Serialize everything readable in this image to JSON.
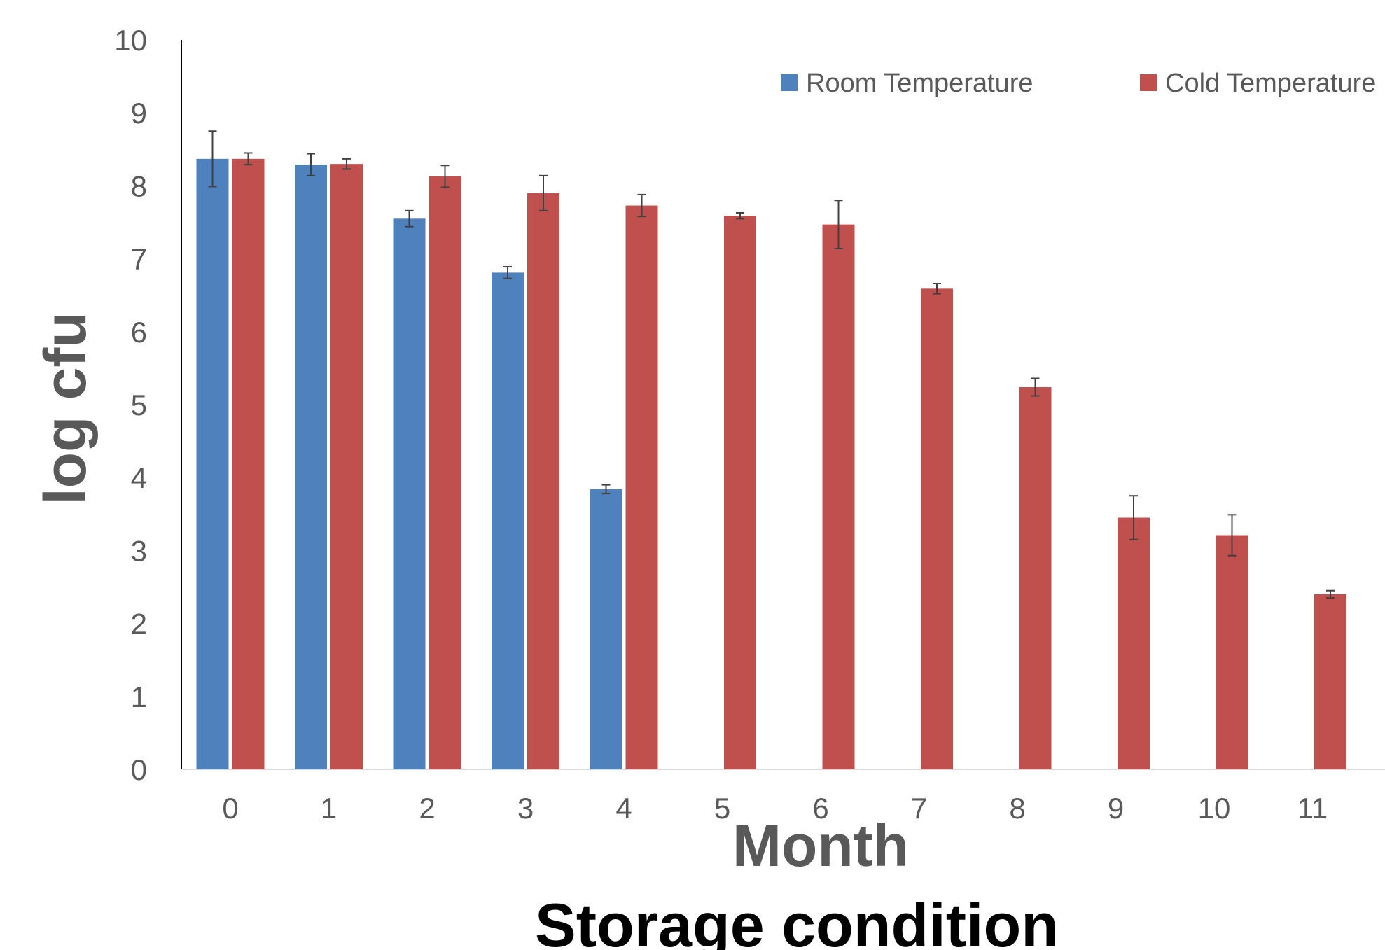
{
  "chart_data": {
    "type": "bar",
    "categories": [
      "0",
      "1",
      "2",
      "3",
      "4",
      "5",
      "6",
      "7",
      "8",
      "9",
      "10",
      "11"
    ],
    "series": [
      {
        "name": "Room Temperature",
        "color": "#4F81BD",
        "values": [
          8.37,
          8.29,
          7.55,
          6.81,
          3.84,
          null,
          null,
          null,
          null,
          null,
          null,
          null
        ],
        "errors": [
          0.38,
          0.15,
          0.11,
          0.08,
          0.06,
          null,
          null,
          null,
          null,
          null,
          null,
          null
        ]
      },
      {
        "name": "Cold Temperature",
        "color": "#C0504D",
        "values": [
          8.37,
          8.3,
          8.13,
          7.9,
          7.73,
          7.59,
          7.47,
          6.59,
          5.24,
          3.45,
          3.21,
          2.4
        ],
        "errors": [
          0.08,
          0.07,
          0.15,
          0.24,
          0.15,
          0.04,
          0.33,
          0.07,
          0.12,
          0.3,
          0.28,
          0.05
        ]
      }
    ],
    "xlabel": "Month",
    "ylabel": "log cfu",
    "caption": "Storage condition",
    "ylim": [
      0,
      10
    ],
    "yticks": [
      "0",
      "1",
      "2",
      "3",
      "4",
      "5",
      "6",
      "7",
      "8",
      "9",
      "10"
    ],
    "grid": false,
    "legend_position": "top-right"
  }
}
